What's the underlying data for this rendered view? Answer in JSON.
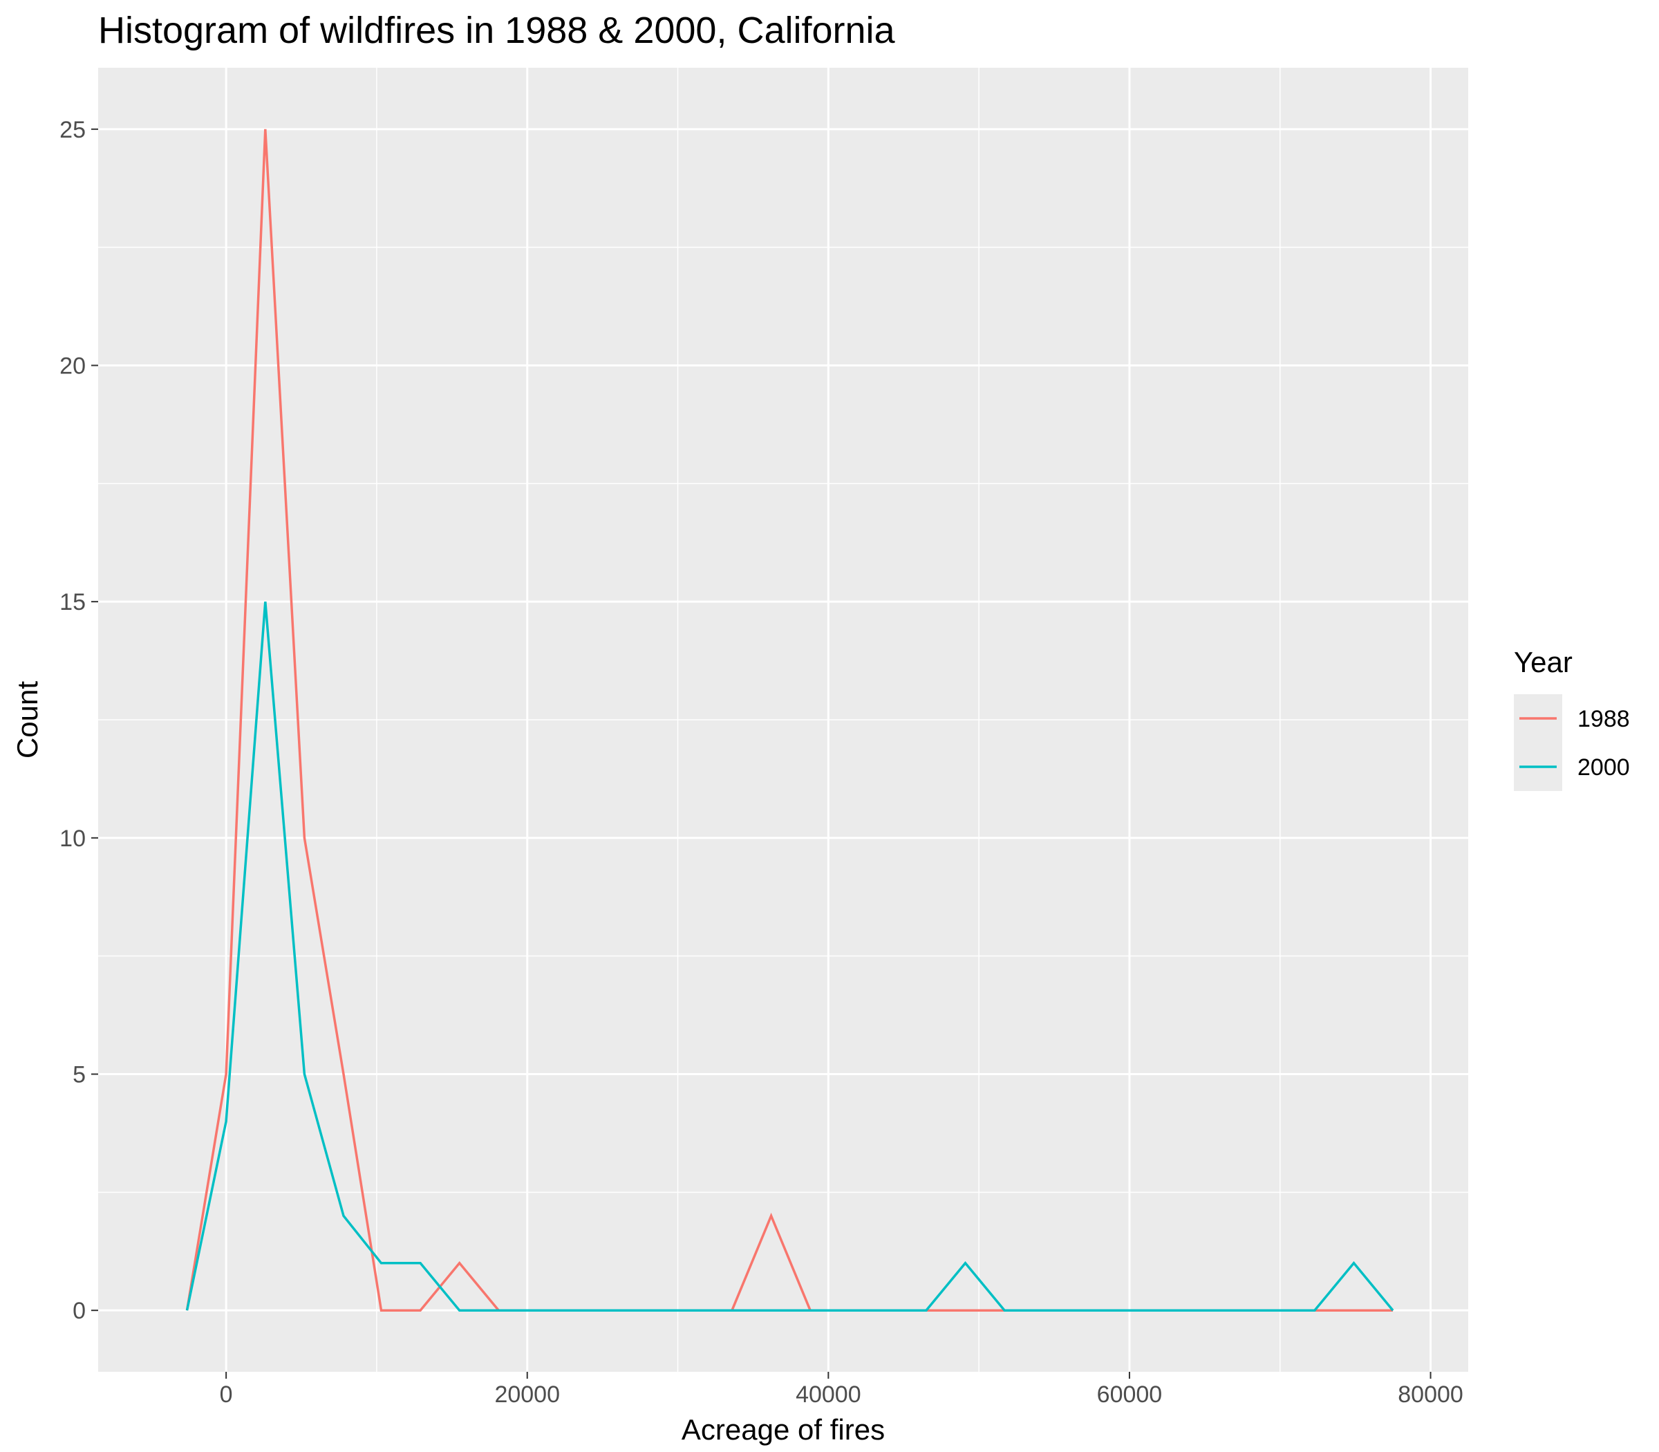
{
  "chart_data": {
    "type": "line",
    "title": "Histogram of wildfires in 1988 & 2000, California",
    "xlabel": "Acreage of fires",
    "ylabel": "Count",
    "xlim": [
      -8500,
      82500
    ],
    "ylim": [
      -1.3,
      26.3
    ],
    "x_ticks": [
      0,
      20000,
      40000,
      60000,
      80000
    ],
    "x_tick_labels": [
      "0",
      "20000",
      "40000",
      "60000",
      "80000"
    ],
    "y_ticks": [
      0,
      5,
      10,
      15,
      20,
      25
    ],
    "y_tick_labels": [
      "0",
      "5",
      "10",
      "15",
      "20",
      "25"
    ],
    "grid": true,
    "legend": {
      "title": "Year",
      "position": "right"
    },
    "x": [
      -2600,
      0,
      2600,
      5200,
      7800,
      10300,
      12900,
      15500,
      18100,
      20700,
      23300,
      25800,
      28400,
      31000,
      33600,
      36200,
      38800,
      41300,
      43900,
      46500,
      49100,
      51700,
      54300,
      56800,
      59400,
      62000,
      64600,
      67200,
      69800,
      72300,
      74900,
      77500
    ],
    "series": [
      {
        "name": "1988",
        "color": "#F8766D",
        "values": [
          0,
          5,
          25,
          10,
          5,
          0,
          0,
          1,
          0,
          0,
          0,
          0,
          0,
          0,
          0,
          2,
          0,
          0,
          0,
          0,
          0,
          0,
          0,
          0,
          0,
          0,
          0,
          0,
          0,
          0,
          0,
          0
        ]
      },
      {
        "name": "2000",
        "color": "#00BFC4",
        "values": [
          0,
          4,
          15,
          5,
          2,
          1,
          1,
          0,
          0,
          0,
          0,
          0,
          0,
          0,
          0,
          0,
          0,
          0,
          0,
          0,
          1,
          0,
          0,
          0,
          0,
          0,
          0,
          0,
          0,
          0,
          1,
          0
        ]
      }
    ],
    "colors": {
      "panel": "#EBEBEB",
      "grid": "#FFFFFF",
      "tick": "#333333"
    }
  }
}
